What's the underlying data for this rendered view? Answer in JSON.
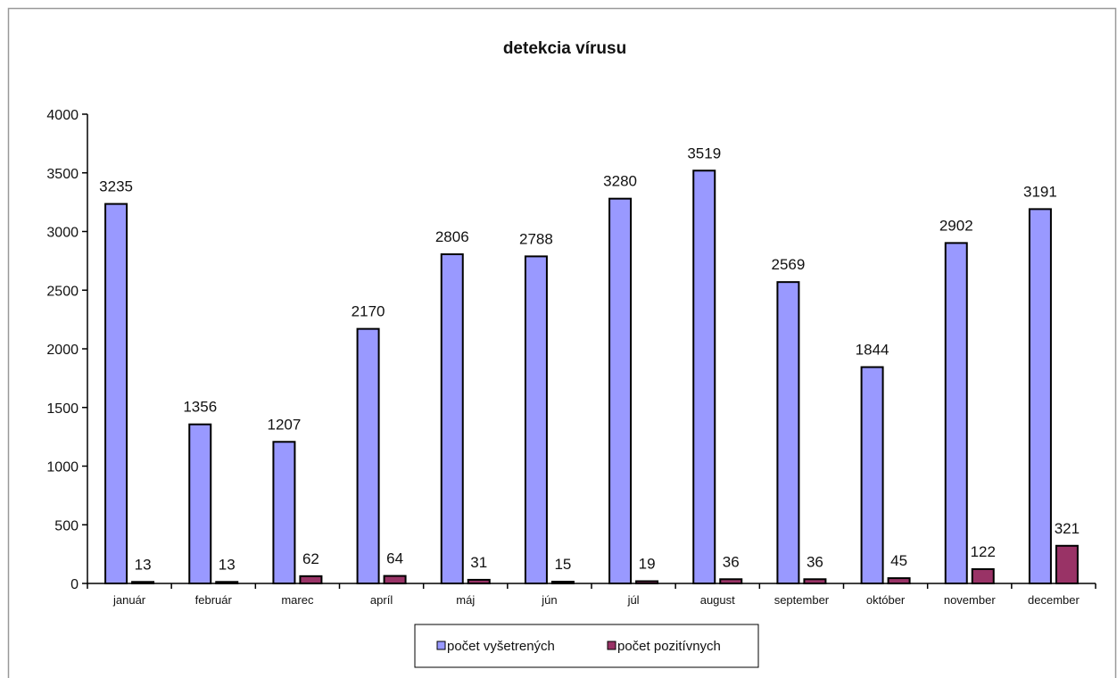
{
  "chart_data": {
    "type": "bar",
    "title": "detekcia vírusu",
    "xlabel": "",
    "ylabel": "",
    "categories": [
      "január",
      "február",
      "marec",
      "apríl",
      "máj",
      "jún",
      "júl",
      "august",
      "september",
      "október",
      "november",
      "december"
    ],
    "series": [
      {
        "name": "počet vyšetrených",
        "color": "#9999ff",
        "values": [
          3235,
          1356,
          1207,
          2170,
          2806,
          2788,
          3280,
          3519,
          2569,
          1844,
          2902,
          3191
        ]
      },
      {
        "name": "počet pozitívnych",
        "color": "#993366",
        "values": [
          13,
          13,
          62,
          64,
          31,
          15,
          19,
          36,
          36,
          45,
          122,
          321
        ]
      }
    ],
    "ylim": [
      0,
      4000
    ],
    "yticks": [
      0,
      500,
      1000,
      1500,
      2000,
      2500,
      3000,
      3500,
      4000
    ],
    "grid": false,
    "legend_position": "bottom-center",
    "data_labels": true
  }
}
